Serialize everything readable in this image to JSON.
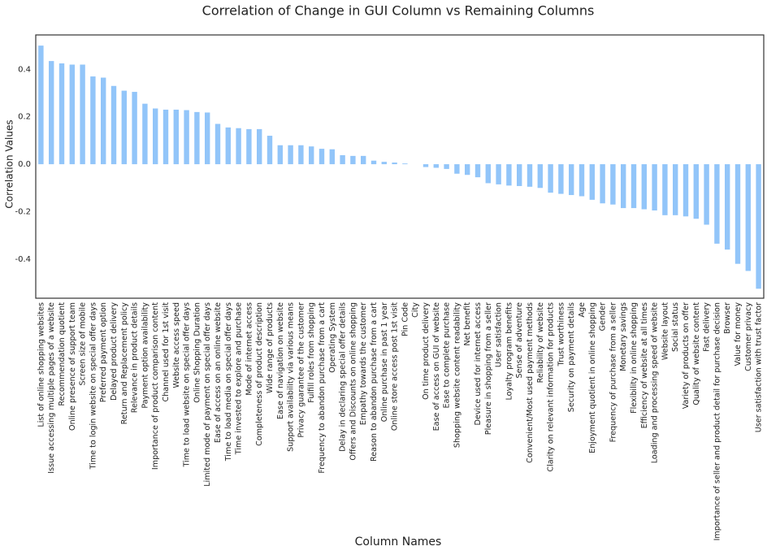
{
  "chart_data": {
    "type": "bar",
    "title": "Correlation of Change in GUI Column vs Remaining Columns",
    "x_label": "Column Names",
    "y_label": "Correlation Values",
    "categories": [
      "List of online shopping websites",
      "Issue accessing multiple pages of a website",
      "Recommendation quotient",
      "Online presence of support team",
      "Screen size of mobile",
      "Time to login website on special offer days",
      "Preferred payment option",
      "Delayed product delivery",
      "Return and Replacement policy",
      "Relevance in product details",
      "Payment option availability",
      "Importance of product comparison content",
      "Channel used for 1st visit",
      "Website access speed",
      "Time to load website on special offer days",
      "Online Shopping Duration",
      "Limited mode of payment on special offer days",
      "Ease of access on an online website",
      "Time to load media on special offer days",
      "Time invested to explore and purchase",
      "Mode of internet access",
      "Completeness of product description",
      "Wide range of products",
      "Ease of navigation on website",
      "Support availability via various means",
      "Privacy guarantee of the customer",
      "Fulfill roles from shopping",
      "Frequency to abandon purchase from a cart",
      "Operating System",
      "Delay in declaring special offer details",
      "Offers and Discounts on online shopping",
      "Empathy towards the customer",
      "Reason to abandon purchase from a cart",
      "Online purchase in past 1 year",
      "Online store access post 1st visit",
      "Pin Code",
      "City",
      "On time product delivery",
      "Ease of access on GUI of website",
      "Ease to complete purchase",
      "Shopping website content readability",
      "Net benefit",
      "Device used for internet access",
      "Pleasure in shopping from a seller",
      "User satisfaction",
      "Loyalty program benefits",
      "Sense of adventure",
      "Convenient/Most used payment methods",
      "Reliability of website",
      "Clarity on relevant information for products",
      "Trust worthiness",
      "Security on payment details",
      "Age",
      "Enjoyment quotient in online shopping",
      "Gender",
      "Frequency of purchase from a seller",
      "Monetary savings",
      "Flexibility in online shopping",
      "Efficiency of website at all times",
      "Loading and processing speed of website",
      "Website layout",
      "Social status",
      "Variety of products on offer",
      "Quality of website content",
      "Fast delivery",
      "Importance of seller and product detail for purchase decision",
      "Browser",
      "Value for money",
      "Customer privacy",
      "User satisfaction with trust factor"
    ],
    "values": [
      0.5,
      0.435,
      0.425,
      0.42,
      0.42,
      0.37,
      0.365,
      0.33,
      0.31,
      0.305,
      0.255,
      0.235,
      0.23,
      0.23,
      0.228,
      0.22,
      0.218,
      0.17,
      0.155,
      0.152,
      0.148,
      0.148,
      0.12,
      0.08,
      0.08,
      0.08,
      0.075,
      0.065,
      0.063,
      0.038,
      0.035,
      0.035,
      0.015,
      0.01,
      0.007,
      0.003,
      0,
      -0.012,
      -0.015,
      -0.02,
      -0.04,
      -0.045,
      -0.055,
      -0.08,
      -0.085,
      -0.09,
      -0.092,
      -0.095,
      -0.1,
      -0.12,
      -0.125,
      -0.13,
      -0.135,
      -0.15,
      -0.165,
      -0.17,
      -0.185,
      -0.185,
      -0.19,
      -0.195,
      -0.215,
      -0.215,
      -0.22,
      -0.23,
      -0.255,
      -0.335,
      -0.36,
      -0.42,
      -0.45,
      -0.525
    ],
    "color": "#92c5f9",
    "ylim": [
      -0.565,
      0.545
    ],
    "yticks": [
      -0.4,
      -0.2,
      {
        "value": 0,
        "label": "0.0"
      },
      0.2,
      0.4
    ],
    "grid": false
  }
}
